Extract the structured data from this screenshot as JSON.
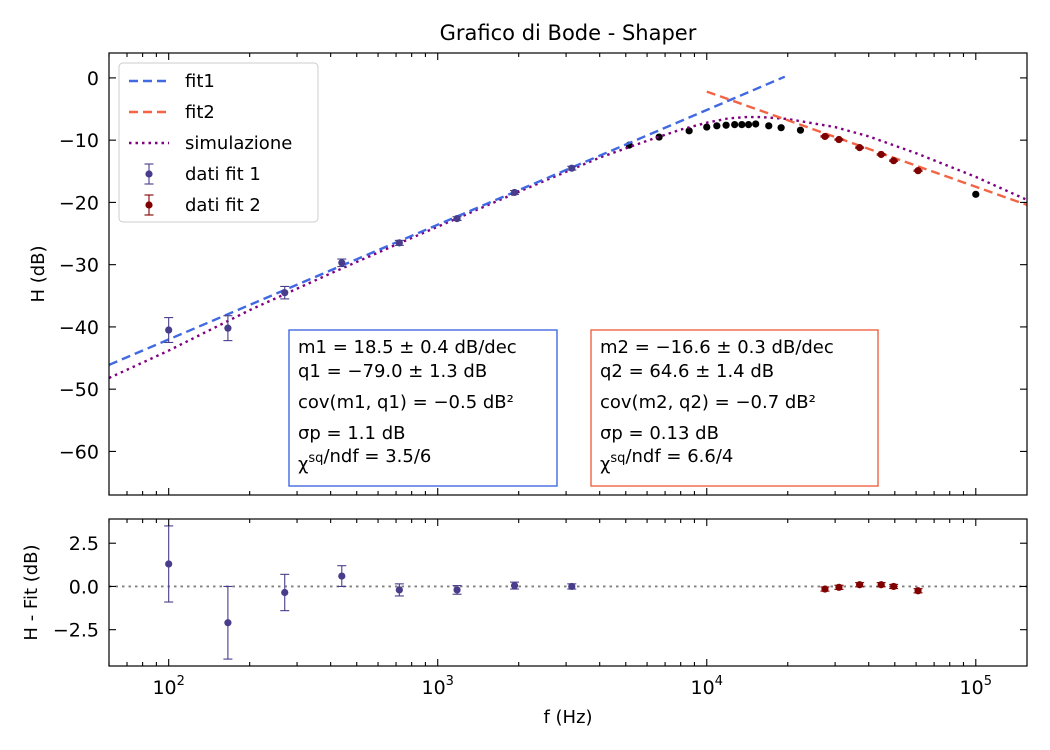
{
  "chart_data": [
    {
      "type": "scatter",
      "title": "Grafico di Bode - Shaper",
      "xlabel": "",
      "ylabel": "H (dB)",
      "xscale": "log",
      "xlim": [
        60,
        155000
      ],
      "ylim": [
        -67,
        4
      ],
      "x_ticks": [
        100,
        1000,
        10000,
        100000
      ],
      "y_ticks": [
        0,
        -10,
        -20,
        -30,
        -40,
        -50,
        -60
      ],
      "y_tick_labels": [
        "0",
        "−10",
        "−20",
        "−30",
        "−40",
        "−50",
        "−60"
      ],
      "legend_position": "top-left",
      "legend": [
        "fit1",
        "fit2",
        "simulazione",
        "dati fit 1",
        "dati fit 2"
      ],
      "series": [
        {
          "name": "fit1",
          "kind": "line",
          "style": "dashed",
          "color": "#4169e1",
          "x": [
            60,
            19500
          ],
          "y": [
            -46.1,
            0.2
          ]
        },
        {
          "name": "fit2",
          "kind": "line",
          "style": "dashed",
          "color": "#f26444",
          "x": [
            10000,
            155000
          ],
          "y": [
            -2.2,
            -20.4
          ]
        },
        {
          "name": "simulazione",
          "kind": "line",
          "style": "dotted",
          "color": "#800080",
          "x": [
            60,
            100,
            200,
            400,
            700,
            1000,
            2000,
            4000,
            6000,
            8000,
            10000,
            12000,
            14000,
            16000,
            20000,
            30000,
            40000,
            60000,
            100000,
            155000
          ],
          "y": [
            -48.2,
            -43.8,
            -37.3,
            -31.4,
            -26.8,
            -23.9,
            -18.3,
            -12.8,
            -10.1,
            -8.3,
            -7.2,
            -6.5,
            -6.3,
            -6.3,
            -6.6,
            -7.9,
            -9.4,
            -12.1,
            -15.9,
            -19.6
          ]
        },
        {
          "name": "dati fit 1",
          "kind": "errorbar",
          "color": "#483d8b",
          "x": [
            100,
            166,
            270,
            440,
            720,
            1180,
            1930,
            3150
          ],
          "y": [
            -40.5,
            -40.2,
            -34.5,
            -29.7,
            -26.5,
            -22.6,
            -18.4,
            -14.5
          ],
          "yerr": [
            2.0,
            2.0,
            1.0,
            0.6,
            0.4,
            0.3,
            0.3,
            0.3
          ]
        },
        {
          "name": "dati fit 2",
          "kind": "errorbar",
          "color": "#800000",
          "x": [
            27500,
            31000,
            37000,
            44500,
            49500,
            61000
          ],
          "y": [
            -9.4,
            -9.9,
            -11.2,
            -12.3,
            -13.3,
            -14.9
          ],
          "yerr": [
            0.1,
            0.1,
            0.1,
            0.1,
            0.1,
            0.1
          ]
        },
        {
          "name": "",
          "kind": "points",
          "color": "#000000",
          "x": [
            5150,
            6650,
            8600,
            10000,
            10900,
            11800,
            12700,
            13500,
            14300,
            15200,
            17000,
            18900,
            22300,
            100000
          ],
          "y": [
            -10.8,
            -9.5,
            -8.5,
            -7.9,
            -7.7,
            -7.6,
            -7.5,
            -7.5,
            -7.5,
            -7.4,
            -7.7,
            -8.0,
            -8.4,
            -18.7
          ]
        }
      ],
      "annotations": [
        {
          "border_color": "#4169e1",
          "lines": [
            "m1 = 18.5 ± 0.4 dB/dec",
            "q1 = −79.0 ± 1.3 dB",
            "cov(m1, q1) = −0.5 dB²",
            "σp = 1.1 dB",
            "χ^sq/ndf = 3.5/6"
          ]
        },
        {
          "border_color": "#f26444",
          "lines": [
            "m2 = −16.6 ± 0.3 dB/dec",
            "q2 = 64.6 ± 1.4 dB",
            "cov(m2, q2) = −0.7 dB²",
            "σp = 0.13 dB",
            "χ^sq/ndf = 6.6/4"
          ]
        }
      ]
    },
    {
      "type": "scatter",
      "title": "",
      "xlabel": "f (Hz)",
      "ylabel": "H - Fit (dB)",
      "xscale": "log",
      "xlim": [
        60,
        155000
      ],
      "ylim": [
        -4.6,
        3.9
      ],
      "x_ticks": [
        100,
        1000,
        10000,
        100000
      ],
      "x_tick_labels": [
        {
          "base": "10",
          "exp": "2"
        },
        {
          "base": "10",
          "exp": "3"
        },
        {
          "base": "10",
          "exp": "4"
        },
        {
          "base": "10",
          "exp": "5"
        }
      ],
      "y_ticks": [
        2.5,
        0.0,
        -2.5
      ],
      "y_tick_labels": [
        "2.5",
        "0.0",
        "−2.5"
      ],
      "reference_line": {
        "y": 0,
        "style": "dotted",
        "color": "#808080"
      },
      "series": [
        {
          "name": "",
          "kind": "errorbar",
          "color": "#483d8b",
          "x": [
            100,
            166,
            270,
            440,
            720,
            1180,
            1930,
            3150
          ],
          "y": [
            1.3,
            -2.1,
            -0.35,
            0.6,
            -0.2,
            -0.2,
            0.05,
            0.0
          ],
          "yerr": [
            2.2,
            2.1,
            1.05,
            0.6,
            0.35,
            0.25,
            0.2,
            0.15
          ]
        },
        {
          "name": "",
          "kind": "errorbar",
          "color": "#800000",
          "x": [
            27500,
            31000,
            37000,
            44500,
            49500,
            61000
          ],
          "y": [
            -0.15,
            -0.05,
            0.1,
            0.1,
            0.0,
            -0.25
          ],
          "yerr": [
            0.12,
            0.12,
            0.12,
            0.12,
            0.12,
            0.12
          ]
        }
      ]
    }
  ]
}
